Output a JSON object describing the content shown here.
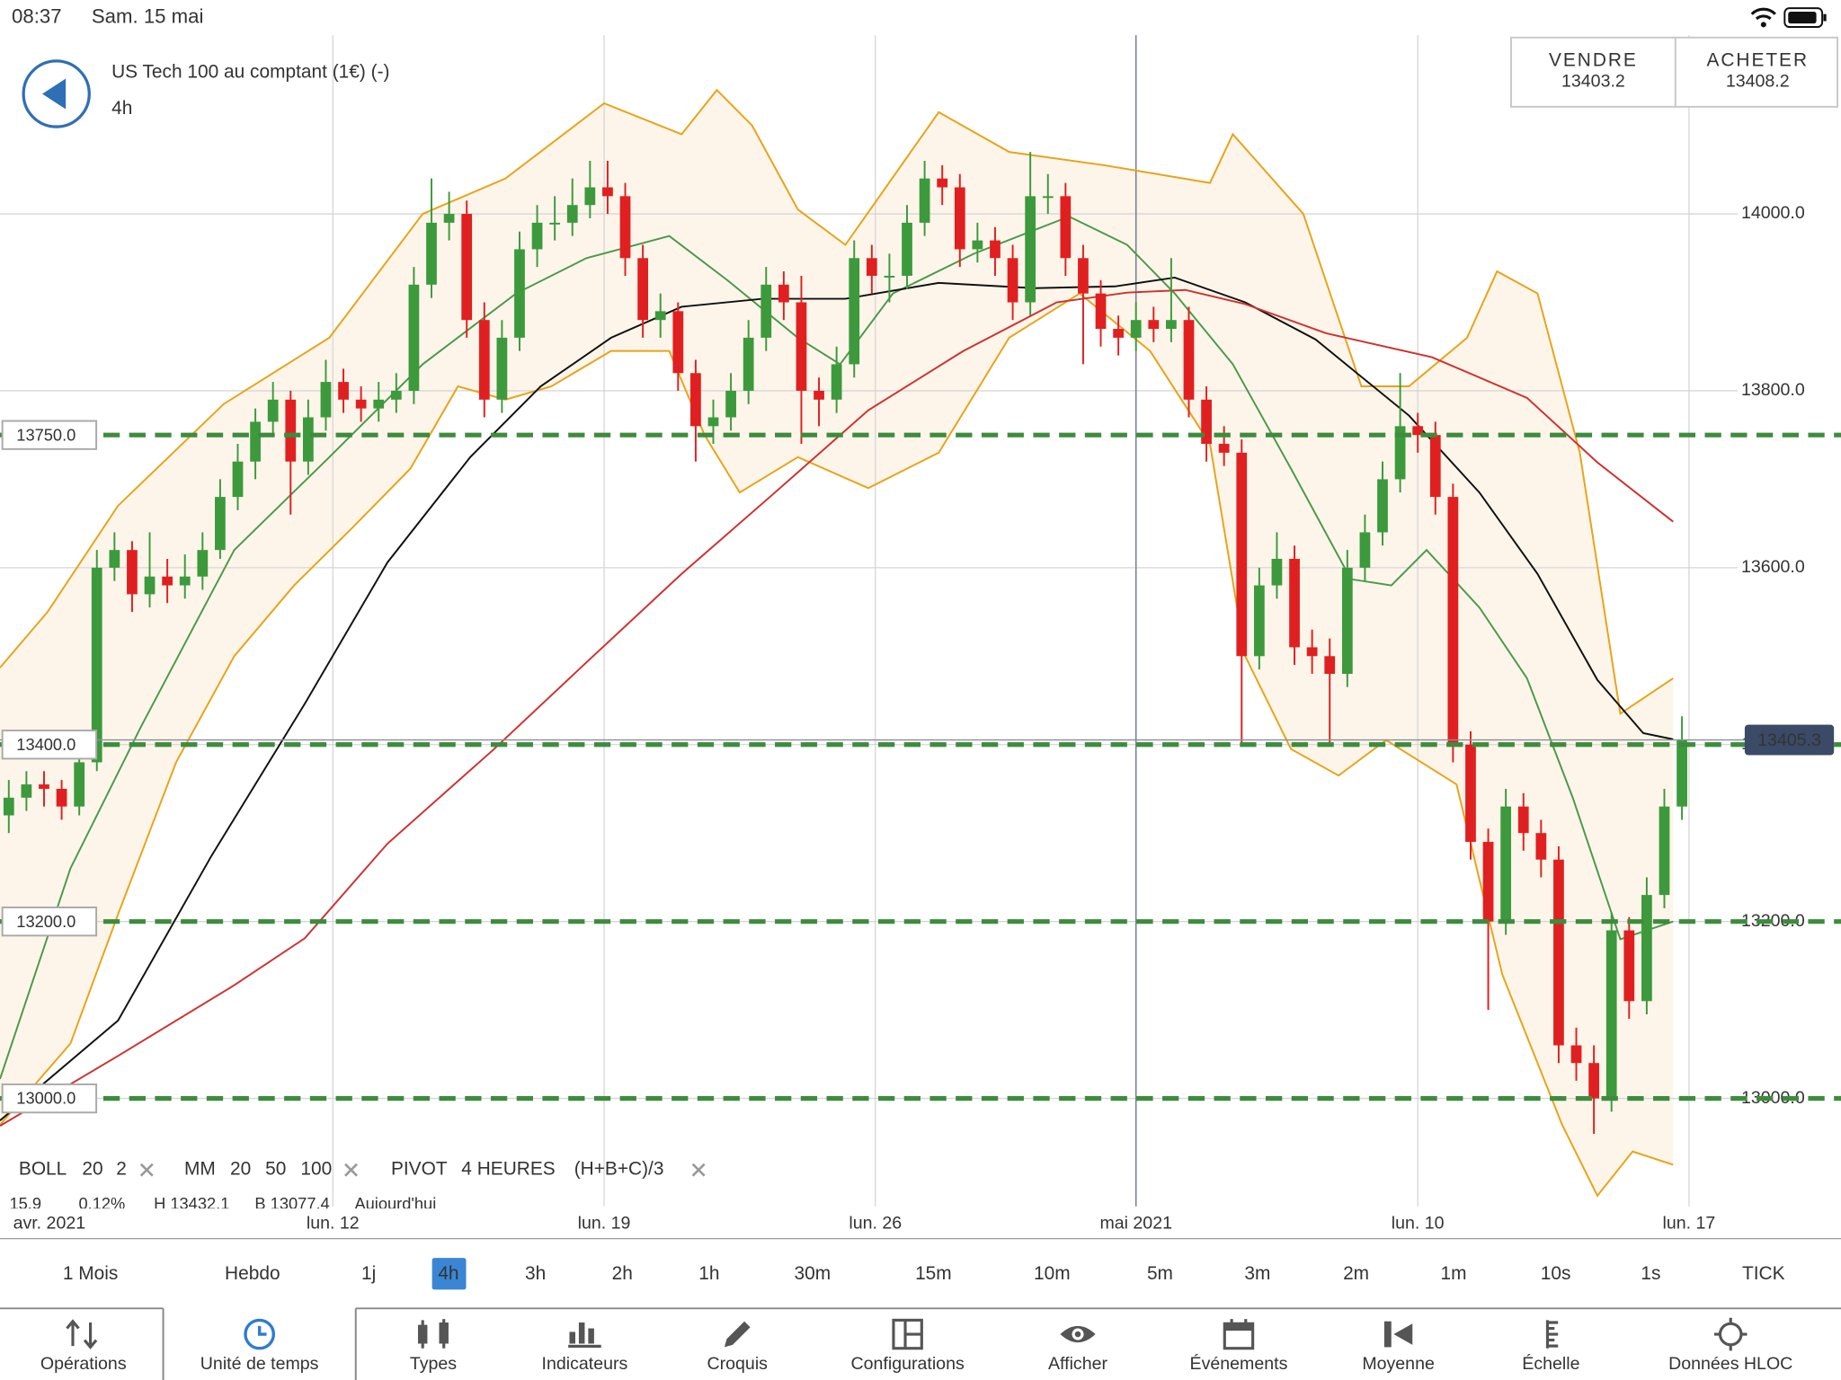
{
  "status_bar": {
    "time": "08:37",
    "date": "Sam. 15 mai"
  },
  "header": {
    "instrument": "US Tech 100 au comptant (1€) (-)",
    "timeframe": "4h"
  },
  "quote": {
    "sell_label": "VENDRE",
    "sell": 13403.2,
    "buy_label": "ACHETER",
    "buy": 13408.2
  },
  "chart_data": {
    "type": "candlestick",
    "up_color": "#3c9a3c",
    "down_color": "#e02020",
    "candles": [
      [
        13320,
        13360,
        13300,
        13340
      ],
      [
        13340,
        13370,
        13325,
        13355
      ],
      [
        13355,
        13370,
        13330,
        13350
      ],
      [
        13350,
        13360,
        13315,
        13330
      ],
      [
        13330,
        13400,
        13320,
        13380
      ],
      [
        13380,
        13620,
        13370,
        13600
      ],
      [
        13600,
        13640,
        13585,
        13620
      ],
      [
        13620,
        13630,
        13550,
        13570
      ],
      [
        13570,
        13640,
        13555,
        13590
      ],
      [
        13590,
        13610,
        13560,
        13580
      ],
      [
        13580,
        13615,
        13565,
        13590
      ],
      [
        13590,
        13640,
        13575,
        13620
      ],
      [
        13620,
        13700,
        13610,
        13680
      ],
      [
        13680,
        13740,
        13665,
        13720
      ],
      [
        13720,
        13780,
        13700,
        13765
      ],
      [
        13765,
        13810,
        13750,
        13790
      ],
      [
        13790,
        13800,
        13660,
        13720
      ],
      [
        13720,
        13790,
        13705,
        13770
      ],
      [
        13770,
        13835,
        13755,
        13810
      ],
      [
        13810,
        13825,
        13775,
        13790
      ],
      [
        13790,
        13805,
        13765,
        13780
      ],
      [
        13780,
        13810,
        13765,
        13790
      ],
      [
        13790,
        13820,
        13775,
        13800
      ],
      [
        13800,
        13940,
        13785,
        13920
      ],
      [
        13920,
        14040,
        13905,
        13990
      ],
      [
        13990,
        14025,
        13970,
        14000
      ],
      [
        14000,
        14015,
        13860,
        13880
      ],
      [
        13880,
        13900,
        13770,
        13790
      ],
      [
        13790,
        13880,
        13775,
        13860
      ],
      [
        13860,
        13980,
        13845,
        13960
      ],
      [
        13960,
        14010,
        13940,
        13990
      ],
      [
        13990,
        14020,
        13970,
        13990
      ],
      [
        13990,
        14040,
        13975,
        14010
      ],
      [
        14010,
        14060,
        13995,
        14030
      ],
      [
        14030,
        14060,
        14000,
        14020
      ],
      [
        14020,
        14035,
        13930,
        13950
      ],
      [
        13950,
        13965,
        13860,
        13880
      ],
      [
        13880,
        13910,
        13860,
        13890
      ],
      [
        13890,
        13900,
        13800,
        13820
      ],
      [
        13820,
        13835,
        13720,
        13760
      ],
      [
        13760,
        13790,
        13740,
        13770
      ],
      [
        13770,
        13820,
        13755,
        13800
      ],
      [
        13800,
        13880,
        13785,
        13860
      ],
      [
        13860,
        13940,
        13845,
        13920
      ],
      [
        13920,
        13935,
        13880,
        13900
      ],
      [
        13900,
        13930,
        13740,
        13800
      ],
      [
        13800,
        13815,
        13760,
        13790
      ],
      [
        13790,
        13850,
        13775,
        13830
      ],
      [
        13830,
        13970,
        13815,
        13950
      ],
      [
        13950,
        13965,
        13910,
        13930
      ],
      [
        13930,
        13955,
        13900,
        13930
      ],
      [
        13930,
        14010,
        13915,
        13990
      ],
      [
        13990,
        14060,
        13975,
        14040
      ],
      [
        14040,
        14055,
        14010,
        14030
      ],
      [
        14030,
        14045,
        13940,
        13960
      ],
      [
        13960,
        13990,
        13945,
        13970
      ],
      [
        13970,
        13985,
        13930,
        13950
      ],
      [
        13950,
        13965,
        13880,
        13900
      ],
      [
        13900,
        14070,
        13885,
        14020
      ],
      [
        14020,
        14045,
        14000,
        14020
      ],
      [
        14020,
        14035,
        13930,
        13950
      ],
      [
        13950,
        13965,
        13830,
        13910
      ],
      [
        13910,
        13925,
        13850,
        13870
      ],
      [
        13870,
        13885,
        13840,
        13860
      ],
      [
        13860,
        13900,
        13845,
        13880
      ],
      [
        13880,
        13895,
        13855,
        13870
      ],
      [
        13870,
        13950,
        13855,
        13880
      ],
      [
        13880,
        13895,
        13770,
        13790
      ],
      [
        13790,
        13805,
        13720,
        13740
      ],
      [
        13740,
        13760,
        13715,
        13730
      ],
      [
        13730,
        13745,
        13400,
        13500
      ],
      [
        13500,
        13600,
        13485,
        13580
      ],
      [
        13580,
        13640,
        13565,
        13610
      ],
      [
        13610,
        13625,
        13490,
        13510
      ],
      [
        13510,
        13530,
        13480,
        13500
      ],
      [
        13500,
        13520,
        13400,
        13480
      ],
      [
        13480,
        13620,
        13465,
        13600
      ],
      [
        13600,
        13660,
        13585,
        13640
      ],
      [
        13640,
        13720,
        13625,
        13700
      ],
      [
        13700,
        13820,
        13685,
        13760
      ],
      [
        13760,
        13775,
        13730,
        13750
      ],
      [
        13750,
        13765,
        13660,
        13680
      ],
      [
        13680,
        13695,
        13380,
        13400
      ],
      [
        13400,
        13415,
        13270,
        13290
      ],
      [
        13290,
        13305,
        13100,
        13200
      ],
      [
        13200,
        13350,
        13185,
        13330
      ],
      [
        13330,
        13345,
        13280,
        13300
      ],
      [
        13300,
        13315,
        13250,
        13270
      ],
      [
        13270,
        13285,
        13040,
        13060
      ],
      [
        13060,
        13080,
        13020,
        13040
      ],
      [
        13040,
        13060,
        12960,
        13000
      ],
      [
        13000,
        13210,
        12985,
        13190
      ],
      [
        13190,
        13205,
        13090,
        13110
      ],
      [
        13110,
        13250,
        13095,
        13230
      ],
      [
        13230,
        13350,
        13215,
        13330
      ],
      [
        13330,
        13432,
        13315,
        13405
      ]
    ],
    "band_fill": "#fdf5ea",
    "series": [
      {
        "color": "#e8a317",
        "x": [
          -0.5,
          2.2,
          6.2,
          12.2,
          18.2,
          23.5,
          28.2,
          33.8,
          38.2,
          40.2,
          42.2,
          44.8,
          47.5,
          52.8,
          56.8,
          62.2,
          68.2,
          69.5,
          73.5,
          76.8,
          79.5,
          82.8,
          84.5,
          86.8,
          89.2,
          91.5,
          94.5
        ],
        "values": [
          13487,
          13550,
          13670,
          13785,
          13860,
          14000,
          14040,
          14125,
          14090,
          14140,
          14100,
          14005,
          13965,
          14115,
          14070,
          14055,
          14035,
          14090,
          14000,
          13805,
          13805,
          13860,
          13935,
          13910,
          13730,
          13435,
          13475
        ]
      },
      {
        "color": "#e8a317",
        "x": [
          -0.5,
          3.5,
          6.2,
          9.5,
          12.8,
          16.2,
          19.5,
          22.8,
          25.5,
          28.2,
          30.8,
          34.2,
          37.5,
          39.5,
          41.5,
          44.8,
          48.8,
          52.8,
          56.8,
          60.8,
          64.8,
          68.2,
          70.2,
          72.8,
          75.5,
          78.2,
          82.2,
          84.8,
          88.2,
          90.2,
          92.2,
          94.5
        ],
        "values": [
          12970,
          13062,
          13208,
          13380,
          13500,
          13580,
          13645,
          13712,
          13805,
          13790,
          13805,
          13845,
          13845,
          13750,
          13685,
          13725,
          13690,
          13730,
          13860,
          13910,
          13845,
          13740,
          13500,
          13395,
          13365,
          13405,
          13355,
          13140,
          12970,
          12890,
          12940,
          12925
        ]
      },
      {
        "color": "#4a9a4a",
        "x": [
          -0.5,
          3.5,
          7.5,
          12.8,
          18.2,
          23.5,
          28.8,
          32.8,
          37.5,
          40.8,
          44.8,
          47.2,
          50.2,
          54.8,
          60.2,
          63.5,
          66.2,
          69.5,
          72.8,
          76.2,
          78.5,
          80.5,
          83.5,
          86.2,
          88.8,
          91.5,
          94.5
        ],
        "values": [
          13022,
          13260,
          13420,
          13620,
          13725,
          13830,
          13910,
          13950,
          13975,
          13925,
          13860,
          13830,
          13910,
          13955,
          13997,
          13965,
          13910,
          13830,
          13712,
          13587,
          13580,
          13620,
          13555,
          13475,
          13340,
          13180,
          13200
        ]
      },
      {
        "color": "#111111",
        "x": [
          -0.5,
          6.2,
          11.5,
          16.8,
          21.5,
          26.2,
          30.2,
          34.2,
          38.2,
          42.8,
          47.5,
          52.8,
          58.2,
          62.8,
          66.2,
          70.2,
          74.2,
          79.5,
          83.5,
          86.8,
          90.2,
          92.8,
          94.5
        ],
        "values": [
          12975,
          13088,
          13274,
          13446,
          13606,
          13725,
          13805,
          13860,
          13895,
          13904,
          13904,
          13922,
          13916,
          13918,
          13928,
          13900,
          13858,
          13772,
          13685,
          13593,
          13473,
          13413,
          13406
        ]
      },
      {
        "color": "#d03030",
        "x": [
          -0.5,
          6.2,
          12.8,
          16.8,
          21.5,
          27.5,
          32.8,
          38.2,
          43.5,
          48.8,
          54.2,
          59.5,
          63.5,
          66.8,
          70.2,
          74.8,
          80.8,
          86.2,
          90.2,
          94.5
        ],
        "values": [
          12969,
          13048,
          13128,
          13181,
          13288,
          13394,
          13493,
          13593,
          13685,
          13778,
          13845,
          13900,
          13911,
          13914,
          13898,
          13865,
          13838,
          13792,
          13719,
          13652
        ]
      }
    ],
    "xlim": [
      -0.5,
      104.03
    ],
    "xticks": [
      {
        "value": 2.3,
        "label": "avr. 2021"
      },
      {
        "value": 18.4,
        "label": "lun. 12"
      },
      {
        "value": 33.8,
        "label": "lun. 19"
      },
      {
        "value": 49.2,
        "label": "lun. 26"
      },
      {
        "value": 64.0,
        "label": "mai 2021"
      },
      {
        "value": 80.0,
        "label": "lun. 10"
      },
      {
        "value": 95.4,
        "label": "lun. 17"
      }
    ],
    "ylim": [
      12878,
      14202
    ],
    "yticks": [
      {
        "value": 13000,
        "label": "13000.0"
      },
      {
        "value": 13200,
        "label": "13200.0"
      },
      {
        "value": 13400,
        "label": "13400.0"
      },
      {
        "value": 13600,
        "label": "13600.0"
      },
      {
        "value": 13800,
        "label": "13800.0"
      },
      {
        "value": 14000,
        "label": "14000.0"
      }
    ],
    "grid": true,
    "levels_color": "#3d8c3d",
    "levels": [
      {
        "value": 13750,
        "label": "13750.0"
      },
      {
        "value": 13400,
        "label": "13400.0"
      },
      {
        "value": 13200,
        "label": "13200.0"
      },
      {
        "value": 13000,
        "label": "13000.0"
      }
    ],
    "last_price": 13405.3
  },
  "legend": [
    {
      "name": "BOLL",
      "params": [
        20,
        2
      ],
      "param_colors": [
        "#333333",
        "#333333"
      ]
    },
    {
      "name": "MM",
      "params": [
        20,
        50,
        100
      ],
      "param_colors": [
        "#4a9a4a",
        "#333333",
        "#d03030"
      ]
    },
    {
      "name": "PIVOT",
      "params": [
        "4 HEURES",
        "(H+B+C)/3"
      ],
      "param_colors": [
        "#333333",
        "#333333"
      ]
    }
  ],
  "stats": [
    "15.9",
    "0.12%",
    "H 13432.1",
    "B 13077.4",
    "Aujourd'hui"
  ],
  "timeframes": {
    "items": [
      "1 Mois",
      "Hebdo",
      "1j",
      "4h",
      "3h",
      "2h",
      "1h",
      "30m",
      "15m",
      "10m",
      "5m",
      "3m",
      "2m",
      "1m",
      "10s",
      "1s",
      "TICK"
    ],
    "selected_index": 3
  },
  "tabs": {
    "items": [
      "Opérations",
      "Unité de temps",
      "Types",
      "Indicateurs",
      "Croquis",
      "Configurations",
      "Afficher",
      "Événements",
      "Moyenne",
      "Échelle",
      "Données HLOC"
    ],
    "selected_index": 1
  }
}
